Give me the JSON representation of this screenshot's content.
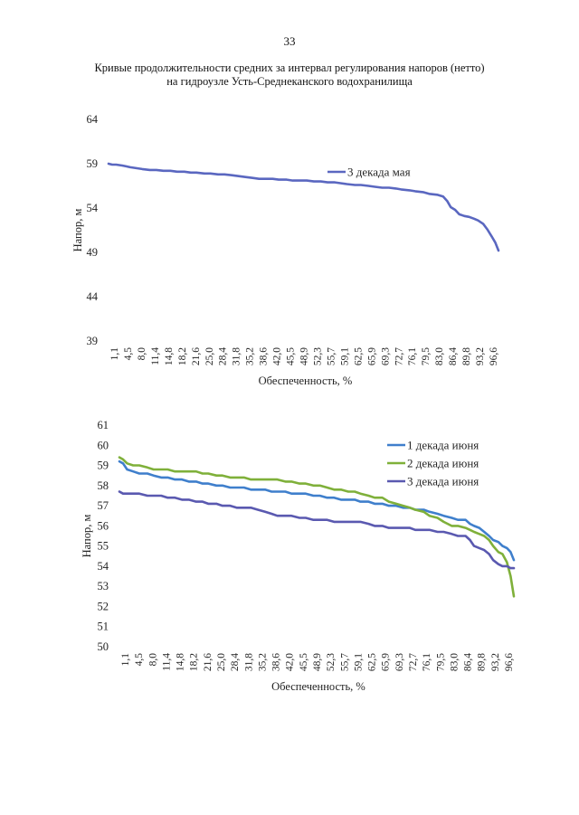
{
  "page": {
    "number": "33"
  },
  "title": {
    "line1": "Кривые продолжительности средних за интервал регулирования напоров (нетто)",
    "line2": "на гидроузле Усть-Среднеканского водохранилища"
  },
  "chart_data": [
    {
      "type": "line",
      "title": "",
      "xlabel": "Обеспеченность, %",
      "ylabel": "Напор, м",
      "ylim": [
        39,
        64
      ],
      "yticks": [
        39,
        44,
        49,
        54,
        59,
        64
      ],
      "grid": false,
      "legend": "top-right",
      "categories": [
        "1,1",
        "4,5",
        "8,0",
        "11,4",
        "14,8",
        "18,2",
        "21,6",
        "25,0",
        "28,4",
        "31,8",
        "35,2",
        "38,6",
        "42,0",
        "45,5",
        "48,9",
        "52,3",
        "55,7",
        "59,1",
        "62,5",
        "65,9",
        "69,3",
        "72,7",
        "76,1",
        "79,5",
        "83,0",
        "86,4",
        "89,8",
        "93,2",
        "96,6"
      ],
      "series": [
        {
          "name": "3 декада мая",
          "color": "#5a67c0",
          "x": [
            1.1,
            2,
            3,
            4.5,
            5.5,
            6.5,
            8.0,
            9.5,
            11.4,
            13,
            14.8,
            16.5,
            18.2,
            20,
            21.6,
            23,
            25.0,
            26.5,
            28.4,
            30,
            31.8,
            33.5,
            35.2,
            37,
            38.6,
            40,
            42.0,
            43.5,
            45.5,
            47,
            48.9,
            50.5,
            52.3,
            54,
            55.7,
            57.5,
            59.1,
            60.5,
            62.5,
            64,
            65.9,
            67.5,
            69.3,
            71,
            72.7,
            74,
            76.1,
            77.5,
            79.5,
            81,
            83.0,
            84.5,
            85.5,
            86.4,
            87.5,
            88.5,
            89.8,
            91,
            92.2,
            93.2,
            94.5,
            95.5,
            96.6,
            97.5,
            98.3
          ],
          "values": [
            59.0,
            58.9,
            58.9,
            58.8,
            58.7,
            58.6,
            58.5,
            58.4,
            58.3,
            58.3,
            58.2,
            58.2,
            58.1,
            58.1,
            58.0,
            58.0,
            57.9,
            57.9,
            57.8,
            57.8,
            57.7,
            57.6,
            57.5,
            57.4,
            57.3,
            57.3,
            57.3,
            57.2,
            57.2,
            57.1,
            57.1,
            57.1,
            57.0,
            57.0,
            56.9,
            56.9,
            56.8,
            56.7,
            56.6,
            56.6,
            56.5,
            56.4,
            56.3,
            56.3,
            56.2,
            56.1,
            56.0,
            55.9,
            55.8,
            55.6,
            55.5,
            55.3,
            54.8,
            54.1,
            53.8,
            53.3,
            53.1,
            53.0,
            52.8,
            52.6,
            52.2,
            51.6,
            50.8,
            50.1,
            49.2
          ]
        }
      ]
    },
    {
      "type": "line",
      "title": "",
      "xlabel": "Обеспеченность, %",
      "ylabel": "Напор, м",
      "ylim": [
        50,
        61
      ],
      "yticks": [
        50,
        51,
        52,
        53,
        54,
        55,
        56,
        57,
        58,
        59,
        60,
        61
      ],
      "grid": false,
      "legend": "top-right",
      "categories": [
        "1,1",
        "4,5",
        "8,0",
        "11,4",
        "14,8",
        "18,2",
        "21,6",
        "25,0",
        "28,4",
        "31,8",
        "35,2",
        "38,6",
        "42,0",
        "45,5",
        "48,9",
        "52,3",
        "55,7",
        "59,1",
        "62,5",
        "65,9",
        "69,3",
        "72,7",
        "76,1",
        "79,5",
        "83,0",
        "86,4",
        "89,8",
        "93,2",
        "96,6"
      ],
      "series": [
        {
          "name": "1 декада июня",
          "color": "#3f7fcc",
          "x": [
            1.1,
            2,
            3,
            4.5,
            6,
            8.0,
            9.5,
            11.4,
            13,
            14.8,
            16.5,
            18.2,
            20,
            21.6,
            23,
            25.0,
            26.5,
            28.4,
            30,
            31.8,
            33.5,
            35.2,
            37,
            38.6,
            40,
            42.0,
            43.5,
            45.5,
            47,
            48.9,
            50.5,
            52.3,
            54,
            55.7,
            57.5,
            59.1,
            60.5,
            62.5,
            64,
            65.9,
            67.5,
            69.3,
            71,
            72.7,
            74,
            76.1,
            77.5,
            79.5,
            81,
            83.0,
            84.5,
            86.4,
            87.5,
            88.5,
            89.8,
            91,
            92.2,
            93.2,
            94.5,
            95.5,
            96.6,
            97.5,
            98.3
          ],
          "values": [
            59.2,
            59.1,
            58.8,
            58.7,
            58.6,
            58.6,
            58.5,
            58.4,
            58.4,
            58.3,
            58.3,
            58.2,
            58.2,
            58.1,
            58.1,
            58.0,
            58.0,
            57.9,
            57.9,
            57.9,
            57.8,
            57.8,
            57.8,
            57.7,
            57.7,
            57.7,
            57.6,
            57.6,
            57.6,
            57.5,
            57.5,
            57.4,
            57.4,
            57.3,
            57.3,
            57.3,
            57.2,
            57.2,
            57.1,
            57.1,
            57.0,
            57.0,
            56.9,
            56.9,
            56.8,
            56.8,
            56.7,
            56.6,
            56.5,
            56.4,
            56.3,
            56.3,
            56.1,
            56.0,
            55.9,
            55.7,
            55.5,
            55.3,
            55.2,
            55.0,
            54.9,
            54.7,
            54.3
          ]
        },
        {
          "name": "2 декада июня",
          "color": "#7fb03a",
          "x": [
            1.1,
            2,
            3,
            4.5,
            6,
            8.0,
            9.5,
            11.4,
            13,
            14.8,
            16.5,
            18.2,
            20,
            21.6,
            23,
            25.0,
            26.5,
            28.4,
            30,
            31.8,
            33.5,
            35.2,
            37,
            38.6,
            40,
            42.0,
            43.5,
            45.5,
            47,
            48.9,
            50.5,
            52.3,
            54,
            55.7,
            57.5,
            59.1,
            60.5,
            62.5,
            64,
            65.9,
            67.5,
            69.3,
            71,
            72.7,
            74,
            76.1,
            77.5,
            79.5,
            81,
            83.0,
            84.5,
            86.4,
            87.5,
            88.5,
            89.8,
            91,
            92.2,
            93.2,
            94.5,
            95.5,
            96.6,
            97.5,
            98.3
          ],
          "values": [
            59.4,
            59.3,
            59.1,
            59.0,
            59.0,
            58.9,
            58.8,
            58.8,
            58.8,
            58.7,
            58.7,
            58.7,
            58.7,
            58.6,
            58.6,
            58.5,
            58.5,
            58.4,
            58.4,
            58.4,
            58.3,
            58.3,
            58.3,
            58.3,
            58.3,
            58.2,
            58.2,
            58.1,
            58.1,
            58.0,
            58.0,
            57.9,
            57.8,
            57.8,
            57.7,
            57.7,
            57.6,
            57.5,
            57.4,
            57.4,
            57.2,
            57.1,
            57.0,
            56.9,
            56.8,
            56.7,
            56.5,
            56.4,
            56.2,
            56.0,
            56.0,
            55.9,
            55.8,
            55.7,
            55.6,
            55.5,
            55.3,
            55.0,
            54.7,
            54.6,
            54.2,
            53.5,
            52.5
          ]
        },
        {
          "name": "3 декада июня",
          "color": "#5a59b0",
          "x": [
            1.1,
            2,
            3,
            4.5,
            6,
            8.0,
            9.5,
            11.4,
            13,
            14.8,
            16.5,
            18.2,
            20,
            21.6,
            23,
            25.0,
            26.5,
            28.4,
            30,
            31.8,
            33.5,
            35.2,
            37,
            38.6,
            40,
            42.0,
            43.5,
            45.5,
            47,
            48.9,
            50.5,
            52.3,
            54,
            55.7,
            57.5,
            59.1,
            60.5,
            62.5,
            64,
            65.9,
            67.5,
            69.3,
            71,
            72.7,
            74,
            76.1,
            77.5,
            79.5,
            81,
            83.0,
            84.5,
            86.4,
            87.5,
            88.5,
            89.8,
            91,
            92.2,
            93.2,
            94.5,
            95.5,
            96.6,
            97.5,
            98.3
          ],
          "values": [
            57.7,
            57.6,
            57.6,
            57.6,
            57.6,
            57.5,
            57.5,
            57.5,
            57.4,
            57.4,
            57.3,
            57.3,
            57.2,
            57.2,
            57.1,
            57.1,
            57.0,
            57.0,
            56.9,
            56.9,
            56.9,
            56.8,
            56.7,
            56.6,
            56.5,
            56.5,
            56.5,
            56.4,
            56.4,
            56.3,
            56.3,
            56.3,
            56.2,
            56.2,
            56.2,
            56.2,
            56.2,
            56.1,
            56.0,
            56.0,
            55.9,
            55.9,
            55.9,
            55.9,
            55.8,
            55.8,
            55.8,
            55.7,
            55.7,
            55.6,
            55.5,
            55.5,
            55.3,
            55.0,
            54.9,
            54.8,
            54.6,
            54.3,
            54.1,
            54.0,
            54.0,
            53.9,
            53.9
          ]
        }
      ]
    }
  ]
}
